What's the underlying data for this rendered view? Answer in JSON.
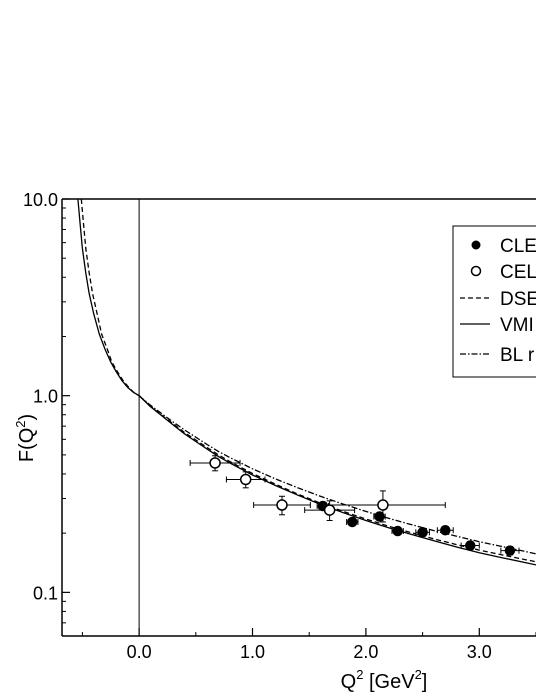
{
  "chart_data": {
    "type": "scatter",
    "xlabel": "Q",
    "xlabel_sup": "2",
    "xlabel_unit_open": " [GeV",
    "xlabel_unit_sup": "2",
    "xlabel_unit_close": "]",
    "ylabel": "F(Q",
    "ylabel_sup": "2",
    "ylabel_close": ")",
    "xlim": [
      -0.68,
      3.5
    ],
    "ylim": [
      0.06,
      10.0
    ],
    "yscale": "log",
    "xticks": [
      {
        "value": 0.0,
        "label": "0.0"
      },
      {
        "value": 1.0,
        "label": "1.0"
      },
      {
        "value": 2.0,
        "label": "2.0"
      },
      {
        "value": 3.0,
        "label": "3.0"
      }
    ],
    "yticks": [
      {
        "value": 0.1,
        "label": "0.1"
      },
      {
        "value": 1.0,
        "label": "1.0"
      },
      {
        "value": 10.0,
        "label": "10.0"
      }
    ],
    "vline_x": 0.0,
    "legend": {
      "placement": "top-right",
      "entries": [
        {
          "label": "CLE",
          "marker": "filled-circle"
        },
        {
          "label": "CEL",
          "marker": "open-circle"
        },
        {
          "label": "DSE",
          "line": "dashed"
        },
        {
          "label": "VMI",
          "line": "solid"
        },
        {
          "label": "BL r",
          "line": "dash-dot"
        }
      ]
    },
    "series": [
      {
        "marker": "filled-circle",
        "points": [
          {
            "x": 1.62,
            "y": 0.275,
            "xerr": 0.05,
            "yerr": 0.012
          },
          {
            "x": 1.88,
            "y": 0.228,
            "xerr": 0.05,
            "yerr": 0.01
          },
          {
            "x": 2.12,
            "y": 0.243,
            "xerr": 0.05,
            "yerr": 0.01
          },
          {
            "x": 2.28,
            "y": 0.205,
            "xerr": 0.05,
            "yerr": 0.009
          },
          {
            "x": 2.5,
            "y": 0.202,
            "xerr": 0.06,
            "yerr": 0.009
          },
          {
            "x": 2.7,
            "y": 0.207,
            "xerr": 0.07,
            "yerr": 0.009
          },
          {
            "x": 2.92,
            "y": 0.173,
            "xerr": 0.08,
            "yerr": 0.008
          },
          {
            "x": 3.27,
            "y": 0.163,
            "xerr": 0.08,
            "yerr": 0.008
          }
        ]
      },
      {
        "marker": "open-circle",
        "points": [
          {
            "x": 0.67,
            "y": 0.455,
            "xerr": 0.22,
            "yerr": 0.04
          },
          {
            "x": 0.94,
            "y": 0.375,
            "xerr": 0.17,
            "yerr": 0.035
          },
          {
            "x": 1.26,
            "y": 0.278,
            "xerr": 0.25,
            "yerr": 0.03
          },
          {
            "x": 1.68,
            "y": 0.262,
            "xerr": 0.22,
            "yerr": 0.03
          },
          {
            "x": 2.15,
            "y": 0.278,
            "xerr": 0.55,
            "yerr": 0.05
          }
        ]
      },
      {
        "line": "solid",
        "points": [
          [
            -0.54,
            10.0
          ],
          [
            -0.52,
            7.5
          ],
          [
            -0.5,
            5.6
          ],
          [
            -0.47,
            4.2
          ],
          [
            -0.44,
            3.3
          ],
          [
            -0.4,
            2.6
          ],
          [
            -0.35,
            2.05
          ],
          [
            -0.3,
            1.72
          ],
          [
            -0.25,
            1.48
          ],
          [
            -0.2,
            1.32
          ],
          [
            -0.15,
            1.19
          ],
          [
            -0.1,
            1.1
          ],
          [
            -0.05,
            1.04
          ],
          [
            0.0,
            1.0
          ],
          [
            0.1,
            0.88
          ],
          [
            0.2,
            0.79
          ],
          [
            0.3,
            0.71
          ],
          [
            0.4,
            0.64
          ],
          [
            0.5,
            0.585
          ],
          [
            0.6,
            0.535
          ],
          [
            0.7,
            0.49
          ],
          [
            0.8,
            0.455
          ],
          [
            1.0,
            0.395
          ],
          [
            1.2,
            0.35
          ],
          [
            1.4,
            0.312
          ],
          [
            1.6,
            0.28
          ],
          [
            1.8,
            0.254
          ],
          [
            2.0,
            0.232
          ],
          [
            2.2,
            0.213
          ],
          [
            2.4,
            0.197
          ],
          [
            2.6,
            0.183
          ],
          [
            2.8,
            0.17
          ],
          [
            3.0,
            0.159
          ],
          [
            3.2,
            0.15
          ],
          [
            3.5,
            0.138
          ]
        ]
      },
      {
        "line": "dashed",
        "points": [
          [
            -0.51,
            10.0
          ],
          [
            -0.49,
            7.5
          ],
          [
            -0.47,
            5.6
          ],
          [
            -0.44,
            4.2
          ],
          [
            -0.41,
            3.3
          ],
          [
            -0.37,
            2.6
          ],
          [
            -0.33,
            2.05
          ],
          [
            -0.28,
            1.72
          ],
          [
            -0.24,
            1.48
          ],
          [
            -0.19,
            1.32
          ],
          [
            -0.14,
            1.19
          ],
          [
            -0.09,
            1.1
          ],
          [
            -0.04,
            1.03
          ],
          [
            0.0,
            1.0
          ],
          [
            0.1,
            0.885
          ],
          [
            0.2,
            0.795
          ],
          [
            0.3,
            0.72
          ],
          [
            0.4,
            0.65
          ],
          [
            0.5,
            0.595
          ],
          [
            0.6,
            0.545
          ],
          [
            0.7,
            0.5
          ],
          [
            0.8,
            0.463
          ],
          [
            1.0,
            0.402
          ],
          [
            1.2,
            0.355
          ],
          [
            1.4,
            0.316
          ],
          [
            1.6,
            0.284
          ],
          [
            1.8,
            0.258
          ],
          [
            2.0,
            0.236
          ],
          [
            2.2,
            0.217
          ],
          [
            2.4,
            0.201
          ],
          [
            2.6,
            0.187
          ],
          [
            2.8,
            0.175
          ],
          [
            3.0,
            0.164
          ],
          [
            3.2,
            0.155
          ],
          [
            3.5,
            0.143
          ]
        ]
      },
      {
        "line": "dash-dot",
        "points": [
          [
            0.0,
            1.0
          ],
          [
            0.1,
            0.895
          ],
          [
            0.2,
            0.81
          ],
          [
            0.3,
            0.735
          ],
          [
            0.4,
            0.67
          ],
          [
            0.5,
            0.615
          ],
          [
            0.6,
            0.565
          ],
          [
            0.7,
            0.52
          ],
          [
            0.8,
            0.485
          ],
          [
            1.0,
            0.425
          ],
          [
            1.2,
            0.378
          ],
          [
            1.4,
            0.34
          ],
          [
            1.6,
            0.308
          ],
          [
            1.8,
            0.281
          ],
          [
            2.0,
            0.258
          ],
          [
            2.2,
            0.238
          ],
          [
            2.4,
            0.221
          ],
          [
            2.6,
            0.206
          ],
          [
            2.8,
            0.193
          ],
          [
            3.0,
            0.181
          ],
          [
            3.2,
            0.171
          ],
          [
            3.5,
            0.157
          ]
        ]
      }
    ]
  }
}
